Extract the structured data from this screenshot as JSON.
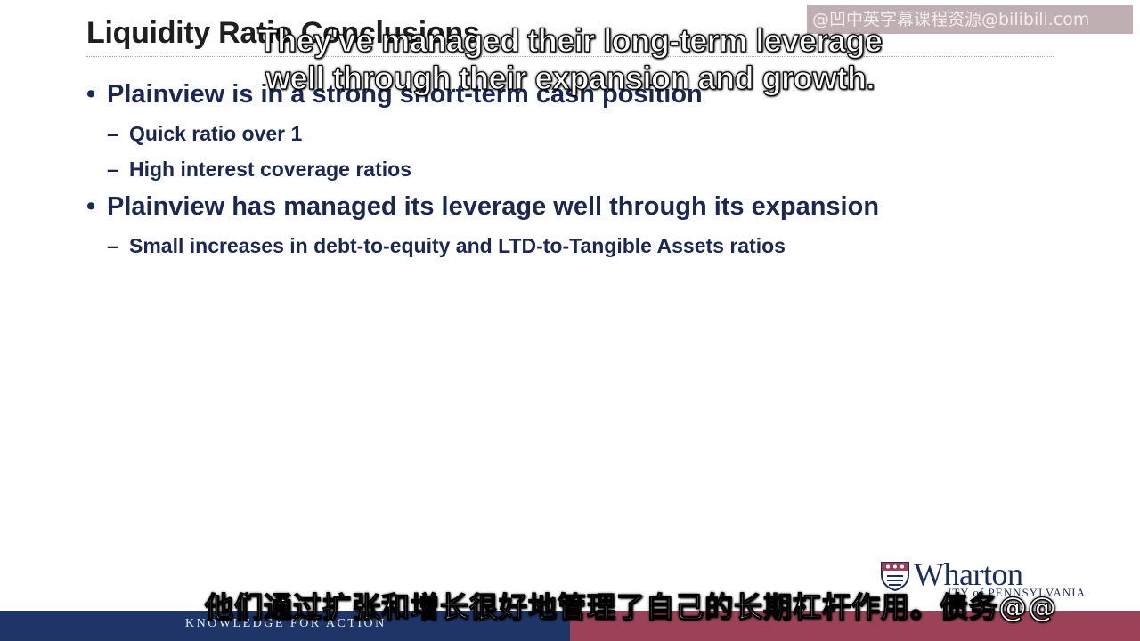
{
  "slide": {
    "title": "Liquidity Ratio Conclusions",
    "bullets": [
      {
        "text": "Plainview is in a strong short-term cash position",
        "subs": [
          "Quick ratio over 1",
          "High interest coverage ratios"
        ]
      },
      {
        "text": "Plainview has managed its leverage well through its expansion",
        "subs": [
          "Small increases in debt-to-equity and LTD-to-Tangible Assets ratios"
        ]
      }
    ],
    "bullet_symbol": "•",
    "dash_symbol": "–"
  },
  "subtitles": {
    "english_line1": "They've managed their long-term leverage",
    "english_line2": "well through their expansion and growth.",
    "chinese": "他们通过扩张和增长很好地管理了自己的长期杠杆作用。债务@@"
  },
  "watermark": "@凹中英字幕课程资源@bilibili.com",
  "branding": {
    "logo_name": "Wharton",
    "logo_sub": "ITY of PENNSYLVANIA",
    "tagline": "KNOWLEDGE FOR ACTION",
    "colors": {
      "navy": "#1f3568",
      "maroon": "#9b4258",
      "text": "#1c2850"
    }
  }
}
